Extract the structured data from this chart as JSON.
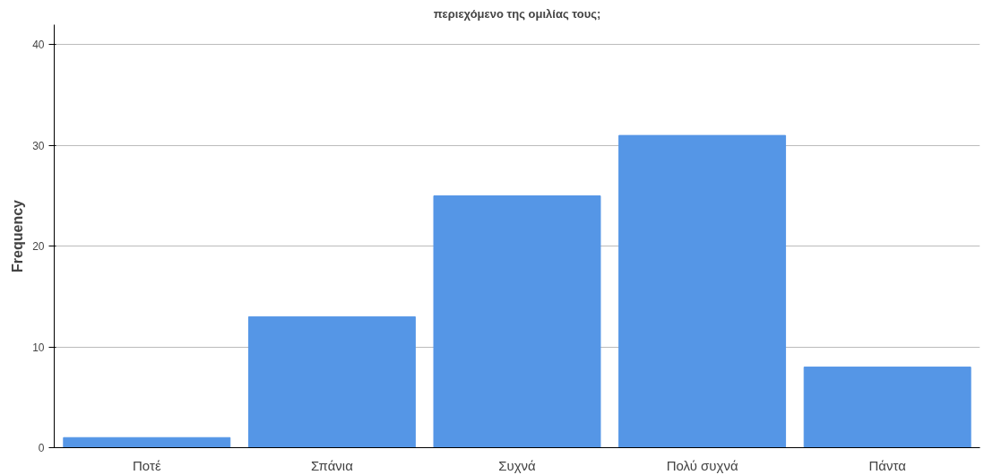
{
  "chart_data": {
    "type": "bar",
    "title": "περιεχόμενο της ομιλίας τους;",
    "ylabel": "Frequency",
    "categories": [
      "Ποτέ",
      "Σπάνια",
      "Συχνά",
      "Πολύ συχνά",
      "Πάντα"
    ],
    "values": [
      1,
      13,
      25,
      31,
      8
    ],
    "color": "#5596e6",
    "ylim": [
      0,
      42
    ],
    "yticks": [
      0,
      10,
      20,
      30,
      40
    ],
    "grid": "y"
  }
}
